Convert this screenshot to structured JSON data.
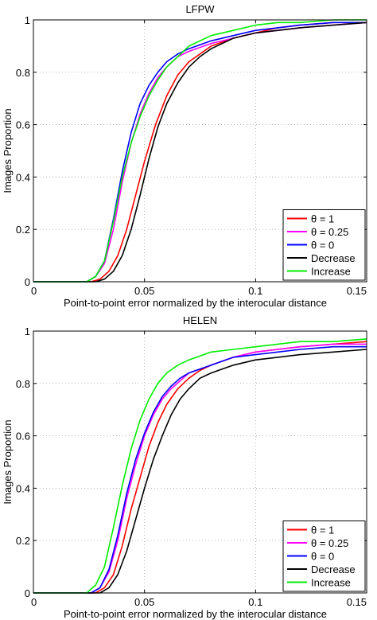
{
  "chart_data": [
    {
      "type": "line",
      "title": "LFPW",
      "xlabel": "Point-to-point error normalized by the interocular distance",
      "ylabel": "Images Proportion",
      "xlim": [
        0,
        0.15
      ],
      "ylim": [
        0,
        1
      ],
      "xticks": [
        0,
        0.05,
        0.1,
        0.15
      ],
      "xtick_labels": [
        "0",
        "0.05",
        "0.1",
        "0.15"
      ],
      "yticks": [
        0,
        0.2,
        0.4,
        0.6,
        0.8,
        1
      ],
      "ytick_labels": [
        "0",
        "0.2",
        "0.4",
        "0.6",
        "0.8",
        "1"
      ],
      "grid": true,
      "legend_position": "bottom-right",
      "series": [
        {
          "name": "θ = 1",
          "color": "#ff0000",
          "x": [
            0,
            0.026,
            0.03,
            0.034,
            0.038,
            0.042,
            0.046,
            0.05,
            0.055,
            0.06,
            0.065,
            0.07,
            0.075,
            0.08,
            0.09,
            0.1,
            0.11,
            0.12,
            0.135,
            0.15
          ],
          "y": [
            0,
            0,
            0.01,
            0.04,
            0.1,
            0.2,
            0.33,
            0.46,
            0.6,
            0.71,
            0.79,
            0.84,
            0.87,
            0.9,
            0.93,
            0.95,
            0.97,
            0.98,
            0.99,
            0.99
          ]
        },
        {
          "name": "θ = 0.25",
          "color": "#ff00ff",
          "x": [
            0,
            0.024,
            0.028,
            0.032,
            0.036,
            0.04,
            0.044,
            0.048,
            0.052,
            0.056,
            0.06,
            0.065,
            0.07,
            0.08,
            0.09,
            0.1,
            0.11,
            0.12,
            0.135,
            0.15
          ],
          "y": [
            0,
            0,
            0.02,
            0.07,
            0.2,
            0.38,
            0.53,
            0.64,
            0.72,
            0.78,
            0.82,
            0.86,
            0.88,
            0.91,
            0.93,
            0.95,
            0.96,
            0.97,
            0.98,
            0.99
          ]
        },
        {
          "name": "θ = 0",
          "color": "#0000ff",
          "x": [
            0,
            0.024,
            0.028,
            0.032,
            0.036,
            0.04,
            0.044,
            0.048,
            0.052,
            0.056,
            0.06,
            0.065,
            0.07,
            0.08,
            0.09,
            0.1,
            0.11,
            0.12,
            0.135,
            0.15
          ],
          "y": [
            0,
            0,
            0.02,
            0.08,
            0.24,
            0.42,
            0.57,
            0.68,
            0.75,
            0.8,
            0.84,
            0.87,
            0.89,
            0.92,
            0.94,
            0.96,
            0.97,
            0.98,
            0.99,
            0.99
          ]
        },
        {
          "name": "Decrease",
          "color": "#000000",
          "x": [
            0,
            0.028,
            0.032,
            0.036,
            0.04,
            0.044,
            0.048,
            0.052,
            0.056,
            0.06,
            0.065,
            0.07,
            0.075,
            0.08,
            0.09,
            0.1,
            0.11,
            0.12,
            0.135,
            0.15
          ],
          "y": [
            0,
            0,
            0.01,
            0.04,
            0.1,
            0.2,
            0.33,
            0.47,
            0.59,
            0.68,
            0.76,
            0.82,
            0.86,
            0.89,
            0.93,
            0.95,
            0.96,
            0.97,
            0.98,
            0.99
          ]
        },
        {
          "name": "Increase",
          "color": "#00ee00",
          "x": [
            0,
            0.024,
            0.028,
            0.032,
            0.036,
            0.04,
            0.044,
            0.048,
            0.052,
            0.056,
            0.06,
            0.065,
            0.07,
            0.08,
            0.09,
            0.1,
            0.11,
            0.12,
            0.135,
            0.15
          ],
          "y": [
            0,
            0,
            0.02,
            0.08,
            0.23,
            0.4,
            0.53,
            0.63,
            0.71,
            0.77,
            0.82,
            0.86,
            0.9,
            0.94,
            0.96,
            0.98,
            0.99,
            0.99,
            1.0,
            1.0
          ]
        }
      ]
    },
    {
      "type": "line",
      "title": "HELEN",
      "xlabel": "Point-to-point error normalized by the interocular distance",
      "ylabel": "Images Proportion",
      "xlim": [
        0,
        0.15
      ],
      "ylim": [
        0,
        1
      ],
      "xticks": [
        0,
        0.05,
        0.1,
        0.15
      ],
      "xtick_labels": [
        "0",
        "0.05",
        "0.1",
        "0.15"
      ],
      "yticks": [
        0,
        0.2,
        0.4,
        0.6,
        0.8,
        1
      ],
      "ytick_labels": [
        "0",
        "0.2",
        "0.4",
        "0.6",
        "0.8",
        "1"
      ],
      "grid": true,
      "legend_position": "bottom-right",
      "series": [
        {
          "name": "θ = 1",
          "color": "#ff0000",
          "x": [
            0,
            0.028,
            0.032,
            0.036,
            0.04,
            0.044,
            0.048,
            0.052,
            0.056,
            0.06,
            0.065,
            0.07,
            0.075,
            0.08,
            0.09,
            0.1,
            0.11,
            0.12,
            0.135,
            0.15
          ],
          "y": [
            0,
            0,
            0.02,
            0.07,
            0.18,
            0.32,
            0.44,
            0.56,
            0.65,
            0.72,
            0.78,
            0.82,
            0.85,
            0.87,
            0.9,
            0.92,
            0.93,
            0.94,
            0.95,
            0.96
          ]
        },
        {
          "name": "θ = 0.25",
          "color": "#ff00ff",
          "x": [
            0,
            0.026,
            0.03,
            0.034,
            0.038,
            0.042,
            0.046,
            0.05,
            0.054,
            0.058,
            0.062,
            0.066,
            0.07,
            0.08,
            0.09,
            0.1,
            0.11,
            0.12,
            0.135,
            0.15
          ],
          "y": [
            0,
            0,
            0.02,
            0.08,
            0.2,
            0.36,
            0.49,
            0.6,
            0.68,
            0.74,
            0.78,
            0.81,
            0.84,
            0.87,
            0.9,
            0.92,
            0.93,
            0.94,
            0.95,
            0.95
          ]
        },
        {
          "name": "θ = 0",
          "color": "#0000ff",
          "x": [
            0,
            0.026,
            0.03,
            0.034,
            0.038,
            0.042,
            0.046,
            0.05,
            0.054,
            0.058,
            0.062,
            0.066,
            0.07,
            0.08,
            0.09,
            0.1,
            0.11,
            0.12,
            0.135,
            0.15
          ],
          "y": [
            0,
            0,
            0.02,
            0.09,
            0.22,
            0.38,
            0.51,
            0.61,
            0.69,
            0.75,
            0.79,
            0.82,
            0.84,
            0.87,
            0.9,
            0.91,
            0.92,
            0.93,
            0.94,
            0.94
          ]
        },
        {
          "name": "Decrease",
          "color": "#000000",
          "x": [
            0,
            0.03,
            0.034,
            0.038,
            0.042,
            0.046,
            0.05,
            0.054,
            0.058,
            0.062,
            0.066,
            0.07,
            0.075,
            0.08,
            0.09,
            0.1,
            0.11,
            0.12,
            0.135,
            0.15
          ],
          "y": [
            0,
            0,
            0.02,
            0.07,
            0.16,
            0.28,
            0.4,
            0.51,
            0.6,
            0.68,
            0.74,
            0.78,
            0.82,
            0.84,
            0.87,
            0.89,
            0.9,
            0.91,
            0.92,
            0.93
          ]
        },
        {
          "name": "Increase",
          "color": "#00ee00",
          "x": [
            0,
            0.024,
            0.028,
            0.032,
            0.036,
            0.04,
            0.044,
            0.048,
            0.052,
            0.056,
            0.06,
            0.065,
            0.07,
            0.08,
            0.09,
            0.1,
            0.11,
            0.12,
            0.135,
            0.15
          ],
          "y": [
            0,
            0,
            0.03,
            0.1,
            0.25,
            0.41,
            0.55,
            0.66,
            0.74,
            0.8,
            0.84,
            0.87,
            0.89,
            0.92,
            0.93,
            0.94,
            0.95,
            0.96,
            0.96,
            0.97
          ]
        }
      ]
    }
  ]
}
